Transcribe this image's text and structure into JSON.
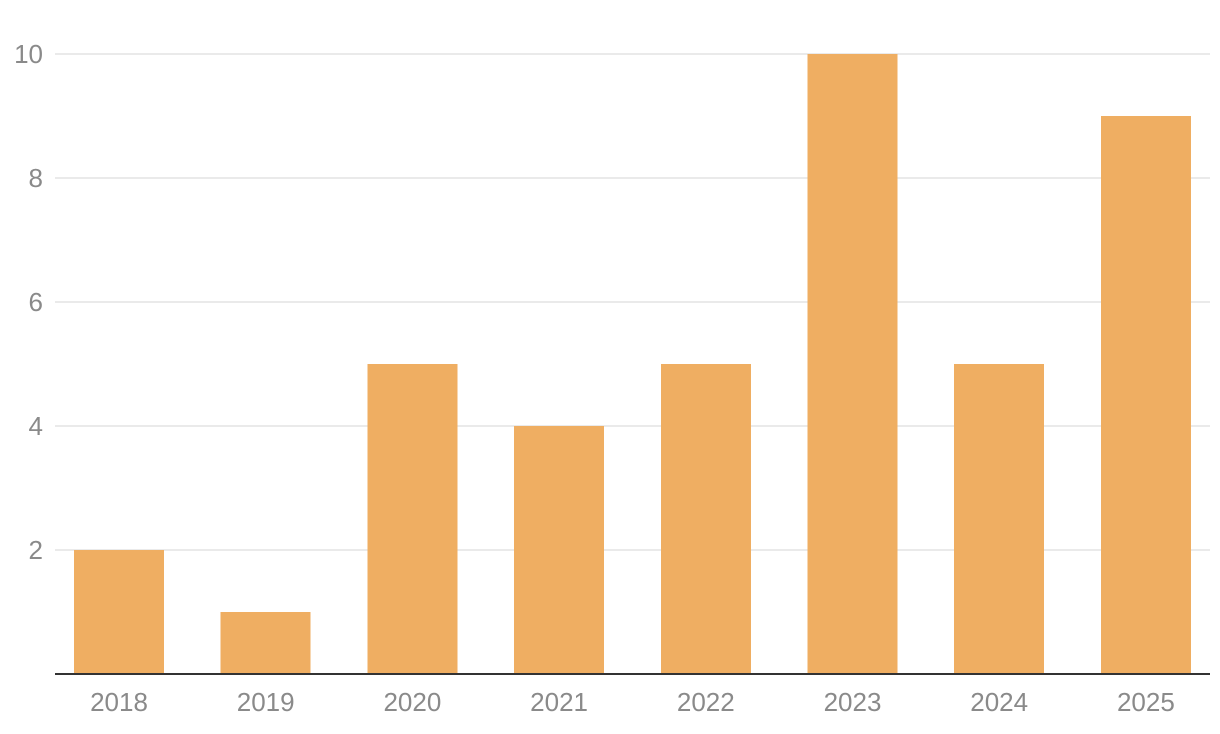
{
  "chart_data": {
    "type": "bar",
    "title": "",
    "xlabel": "",
    "ylabel": "",
    "categories": [
      "2018",
      "2019",
      "2020",
      "2021",
      "2022",
      "2023",
      "2024",
      "2025"
    ],
    "values": [
      2,
      1,
      5,
      4,
      5,
      10,
      5,
      9
    ],
    "ylim": [
      0,
      10
    ],
    "y_ticks": [
      2,
      4,
      6,
      8,
      10
    ],
    "grid": true,
    "legend": "none",
    "colors": {
      "bar": "#EFAE62",
      "grid": "#E3E3E3",
      "axis": "#333333",
      "tick_text": "#8A8A8A"
    }
  }
}
